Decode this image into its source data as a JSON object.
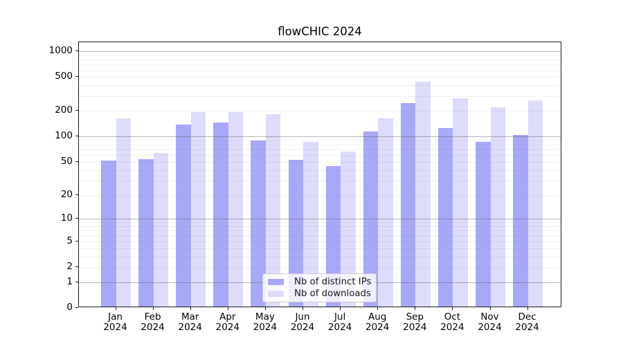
{
  "title": "flowCHIC 2024",
  "chart_data": {
    "type": "bar",
    "title": "flowCHIC 2024",
    "x_tick_months": [
      "Jan",
      "Feb",
      "Mar",
      "Apr",
      "May",
      "Jun",
      "Jul",
      "Aug",
      "Sep",
      "Oct",
      "Nov",
      "Dec"
    ],
    "x_tick_year": "2024",
    "series": [
      {
        "name": "Nb of distinct IPs",
        "color": "#a8a8f8",
        "values": [
          50,
          52,
          133,
          141,
          87,
          51,
          43,
          111,
          240,
          122,
          84,
          100
        ]
      },
      {
        "name": "Nb of downloads",
        "color": "#dddcfa",
        "values": [
          158,
          62,
          186,
          188,
          177,
          83,
          64,
          158,
          425,
          270,
          213,
          258
        ]
      }
    ],
    "y_ticks": [
      0,
      1,
      2,
      5,
      10,
      20,
      50,
      100,
      200,
      500,
      1000
    ],
    "y_scale": "log10(1+y)",
    "ylim": [
      0,
      1280
    ],
    "major_gridlines": [
      1,
      10,
      100,
      1000
    ],
    "minor_gridlines": [
      2,
      3,
      4,
      5,
      6,
      7,
      8,
      9,
      20,
      30,
      40,
      50,
      60,
      70,
      80,
      90,
      200,
      300,
      400,
      500,
      600,
      700,
      800,
      900
    ],
    "grid": true,
    "legend": {
      "entries": [
        "Nb of distinct IPs",
        "Nb of downloads"
      ],
      "position": "lower-center"
    }
  },
  "colors": {
    "ips_bar": "#a8a8f8",
    "downloads_bar": "#dddcfa",
    "major_grid": "#b0b0b0",
    "minor_grid": "#ededed",
    "axis": "#1a1a1a",
    "text": "#000000",
    "legend_border": "#cccccc"
  }
}
